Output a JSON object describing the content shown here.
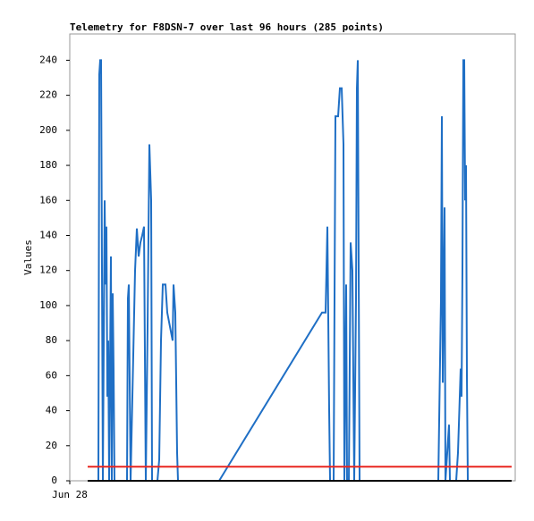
{
  "chart_data": {
    "type": "line",
    "title": "Telemetry for F8DSN-7 over last 96 hours (285 points)",
    "y_label": "Values",
    "xlim": [
      0,
      99.6
    ],
    "xticks": [
      {
        "value": 0,
        "label": "Jun 28"
      }
    ],
    "ylim": [
      0,
      255
    ],
    "yticks": [
      0,
      20,
      40,
      60,
      80,
      100,
      120,
      140,
      160,
      180,
      200,
      220,
      240
    ],
    "grid": false,
    "series": [
      {
        "color": "#000000",
        "x": [
          4,
          98.8
        ],
        "values": [
          0,
          0
        ]
      },
      {
        "color": "#1f6fc5",
        "x": [
          6.4,
          6.6,
          6.8,
          7.0,
          7.2,
          7.4,
          7.6,
          7.8,
          8.0,
          8.2,
          8.4,
          8.6,
          8.8,
          9.2,
          9.4,
          9.6,
          9.8,
          10.0,
          12.8,
          13.0,
          13.2,
          13.4,
          13.6,
          14.2,
          14.6,
          15.0,
          15.4,
          15.8,
          16.2,
          16.6,
          16.8,
          17.0,
          17.4,
          17.8,
          18.0,
          18.2,
          18.4,
          19.6,
          20.0,
          20.4,
          20.8,
          21.4,
          21.8,
          22.4,
          23.0,
          23.2,
          23.6,
          24.0,
          24.2,
          33.4,
          56.4,
          57.2,
          57.6,
          58.0,
          58.2,
          59.0,
          59.4,
          60.0,
          60.4,
          60.8,
          61.2,
          61.4,
          61.8,
          62.0,
          62.4,
          62.8,
          63.2,
          63.6,
          64.0,
          64.2,
          64.4,
          64.6,
          64.8,
          82.4,
          83.0,
          83.2,
          83.4,
          83.8,
          84.0,
          84.8,
          85.0,
          86.4,
          86.8,
          87.2,
          87.4,
          87.6,
          87.8,
          88.0,
          88.2,
          88.4,
          88.6,
          88.8,
          89.0
        ],
        "values": [
          0,
          232,
          240,
          240,
          120,
          0,
          80,
          160,
          112,
          145,
          48,
          80,
          0,
          128,
          0,
          107,
          64,
          0,
          0,
          104,
          112,
          56,
          0,
          72,
          120,
          144,
          128,
          136,
          140,
          145,
          72,
          0,
          88,
          192,
          176,
          160,
          0,
          0,
          12,
          80,
          112,
          112,
          96,
          88,
          80,
          112,
          96,
          16,
          0,
          0,
          96,
          96,
          145,
          40,
          0,
          0,
          208,
          208,
          224,
          224,
          192,
          0,
          112,
          0,
          0,
          136,
          120,
          0,
          104,
          224,
          240,
          120,
          0,
          0,
          104,
          208,
          56,
          156,
          0,
          32,
          0,
          0,
          16,
          48,
          64,
          48,
          120,
          240,
          240,
          160,
          180,
          60,
          0
        ]
      },
      {
        "color": "#e8251f",
        "x": [
          4,
          98.8
        ],
        "values": [
          8,
          8
        ]
      }
    ]
  }
}
